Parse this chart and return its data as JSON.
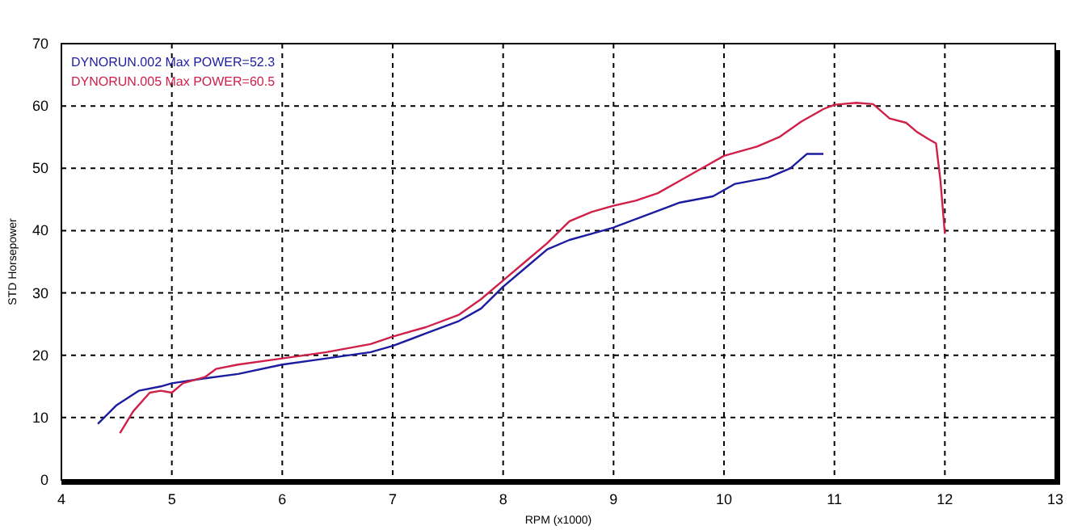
{
  "chart_data": {
    "type": "line",
    "xlabel": "RPM (x1000)",
    "ylabel": "STD Horsepower",
    "xlim": [
      4,
      13
    ],
    "ylim": [
      0,
      70
    ],
    "xticks": [
      4,
      5,
      6,
      7,
      8,
      9,
      10,
      11,
      12,
      13
    ],
    "yticks": [
      0,
      10,
      20,
      30,
      40,
      50,
      60,
      70
    ],
    "grid": true,
    "legend": "top left",
    "line_style": "solid",
    "marker": "none",
    "series": [
      {
        "name": "DYNORUN.002  Max POWER=52.3",
        "color": "#1c1ca0",
        "x": [
          4.33,
          4.5,
          4.7,
          4.9,
          5.0,
          5.3,
          5.6,
          6.0,
          6.4,
          6.8,
          7.0,
          7.3,
          7.6,
          7.8,
          8.0,
          8.2,
          8.4,
          8.6,
          8.8,
          9.0,
          9.3,
          9.6,
          9.9,
          10.1,
          10.4,
          10.6,
          10.75,
          10.9
        ],
        "values": [
          9,
          12,
          14.3,
          15,
          15.5,
          16.3,
          17,
          18.5,
          19.5,
          20.5,
          21.5,
          23.5,
          25.5,
          27.5,
          31,
          34,
          37,
          38.5,
          39.5,
          40.5,
          42.5,
          44.5,
          45.5,
          47.5,
          48.5,
          50,
          52.3,
          52.3
        ]
      },
      {
        "name": "DYNORUN.005  Max POWER=60.5",
        "color": "#d0204a",
        "x": [
          4.53,
          4.65,
          4.8,
          4.9,
          5.0,
          5.1,
          5.3,
          5.4,
          5.6,
          6.0,
          6.4,
          6.8,
          7.0,
          7.3,
          7.6,
          7.8,
          8.0,
          8.2,
          8.4,
          8.6,
          8.8,
          9.0,
          9.2,
          9.4,
          9.6,
          9.8,
          10.0,
          10.3,
          10.5,
          10.7,
          10.9,
          11.0,
          11.2,
          11.35,
          11.5,
          11.65,
          11.75,
          11.85,
          11.92,
          11.96,
          12.0
        ],
        "values": [
          7.5,
          11,
          14,
          14.3,
          14,
          15.5,
          16.5,
          17.8,
          18.5,
          19.5,
          20.5,
          21.8,
          23,
          24.5,
          26.5,
          29,
          32,
          35,
          38,
          41.5,
          43,
          44,
          44.8,
          46,
          48,
          50,
          52,
          53.5,
          55,
          57.5,
          59.5,
          60.2,
          60.5,
          60.3,
          58,
          57.3,
          55.8,
          54.7,
          54,
          48,
          39.5
        ]
      }
    ]
  }
}
